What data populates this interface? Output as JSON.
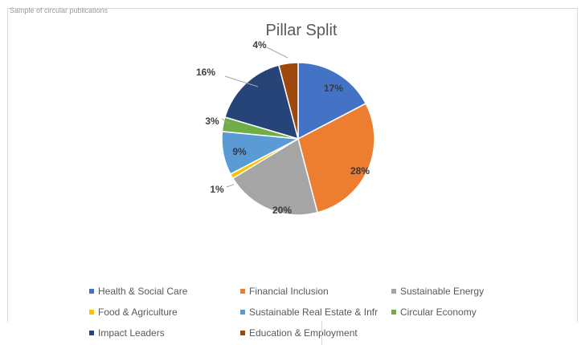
{
  "page": {
    "top_text": "Sample of circular publications"
  },
  "chart_data": {
    "type": "pie",
    "title": "Pillar Split",
    "slices": [
      {
        "name": "Health & Social Care",
        "value": 17,
        "label": "17%",
        "color": "#4472c4"
      },
      {
        "name": "Financial Inclusion",
        "value": 28,
        "label": "28%",
        "color": "#ed7d31"
      },
      {
        "name": "Sustainable Energy",
        "value": 20,
        "label": "20%",
        "color": "#a5a5a5"
      },
      {
        "name": "Food & Agriculture",
        "value": 1,
        "label": "1%",
        "color": "#ffc000"
      },
      {
        "name": "Sustainable Real Estate & Infr",
        "value": 9,
        "label": "9%",
        "color": "#5b9bd5"
      },
      {
        "name": "Circular Economy",
        "value": 3,
        "label": "3%",
        "color": "#70ad47"
      },
      {
        "name": "Impact Leaders",
        "value": 16,
        "label": "16%",
        "color": "#264478"
      },
      {
        "name": "Education & Employment",
        "value": 4,
        "label": "4%",
        "color": "#9e480e"
      }
    ],
    "legend_placement": "bottom"
  }
}
